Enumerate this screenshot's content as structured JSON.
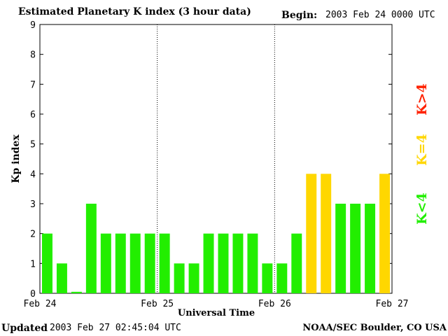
{
  "header": {
    "title": "Estimated Planetary K index (3 hour data)",
    "begin_label": "Begin:",
    "begin_value": "2003 Feb 24 0000 UTC"
  },
  "footer": {
    "updated_label": "Updated",
    "updated_value": "2003 Feb 27 02:45:04 UTC",
    "credit": "NOAA/SEC Boulder, CO USA"
  },
  "chart_data": {
    "type": "bar",
    "title": "Estimated Planetary K index (3 hour data)",
    "xlabel": "Universal Time",
    "ylabel": "Kp index",
    "ylim": [
      0,
      9
    ],
    "yticks": [
      0,
      1,
      2,
      3,
      4,
      5,
      6,
      7,
      8,
      9
    ],
    "xtick_labels": [
      "Feb 24",
      "Feb 25",
      "Feb 26",
      "Feb 27"
    ],
    "day_separators": [
      "Feb 25",
      "Feb 26"
    ],
    "values": [
      2,
      1,
      0.05,
      3,
      2,
      2,
      2,
      2,
      2,
      1,
      1,
      2,
      2,
      2,
      2,
      1,
      1,
      2,
      4,
      4,
      3,
      3,
      3,
      4
    ],
    "colors": {
      "below_4": "#22ee00",
      "equal_4": "#ffd700",
      "above_4": "#ff2200"
    },
    "key": [
      {
        "label": "K<4",
        "color": "#22ee00"
      },
      {
        "label": "K=4",
        "color": "#ffd700"
      },
      {
        "label": "K>4",
        "color": "#ff2200"
      }
    ]
  }
}
